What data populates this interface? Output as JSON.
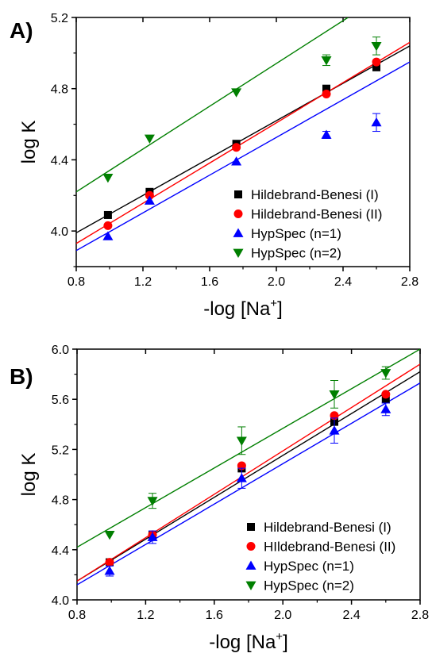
{
  "chart_data": [
    {
      "type": "scatter",
      "panel_label": "A)",
      "xlabel_prefix": "-log [Na",
      "xlabel_sup": "+",
      "xlabel_suffix": "]",
      "ylabel": "log K",
      "xlim": [
        0.8,
        2.8
      ],
      "ylim": [
        3.8,
        5.2
      ],
      "x_ticks": [
        0.8,
        1.2,
        1.6,
        2.0,
        2.4,
        2.8
      ],
      "x_tick_labels": [
        "0.8",
        "1.2",
        "1.6",
        "2.0",
        "2.4",
        "2.8"
      ],
      "y_ticks": [
        4.0,
        4.4,
        4.8,
        5.2
      ],
      "y_tick_labels": [
        "4.0",
        "4.4",
        "4.8",
        "5.2"
      ],
      "legend_position": "bottom-right",
      "series": [
        {
          "name": "Hildebrand-Benesi (I)",
          "color": "#000000",
          "marker": "square",
          "x": [
            0.99,
            1.24,
            1.76,
            2.3,
            2.6
          ],
          "y": [
            4.09,
            4.22,
            4.49,
            4.8,
            4.92
          ],
          "err": [
            0.0,
            0.0,
            0.0,
            0.0,
            0.01
          ],
          "fit": {
            "x": [
              0.8,
              2.8
            ],
            "y": [
              3.99,
              5.04
            ]
          }
        },
        {
          "name": "Hildebrand-Benesi (II)",
          "color": "#ff0000",
          "marker": "circle",
          "x": [
            0.99,
            1.24,
            1.76,
            2.3,
            2.6
          ],
          "y": [
            4.03,
            4.2,
            4.47,
            4.77,
            4.95
          ],
          "err": [
            0.0,
            0.0,
            0.0,
            0.0,
            0.0
          ],
          "fit": {
            "x": [
              0.8,
              2.8
            ],
            "y": [
              3.93,
              5.06
            ]
          }
        },
        {
          "name": "HypSpec (n=1)",
          "color": "#0000ff",
          "marker": "triangle-up",
          "x": [
            0.99,
            1.24,
            1.76,
            2.3,
            2.6
          ],
          "y": [
            3.97,
            4.17,
            4.39,
            4.54,
            4.61
          ],
          "err": [
            0.0,
            0.0,
            0.0,
            0.02,
            0.05
          ],
          "fit": {
            "x": [
              0.8,
              2.8
            ],
            "y": [
              3.89,
              4.95
            ]
          }
        },
        {
          "name": "HypSpec (n=2)",
          "color": "#007f00",
          "marker": "triangle-down",
          "x": [
            0.99,
            1.24,
            1.76,
            2.3,
            2.6
          ],
          "y": [
            4.3,
            4.52,
            4.78,
            4.96,
            5.04
          ],
          "err": [
            0.0,
            0.0,
            0.0,
            0.03,
            0.05
          ],
          "fit": {
            "x": [
              0.8,
              2.43
            ],
            "y": [
              4.22,
              5.2
            ]
          }
        }
      ]
    },
    {
      "type": "scatter",
      "panel_label": "B)",
      "xlabel_prefix": "-log [Na",
      "xlabel_sup": "+",
      "xlabel_suffix": "]",
      "ylabel": "log K",
      "xlim": [
        0.8,
        2.8
      ],
      "ylim": [
        4.0,
        6.0
      ],
      "x_ticks": [
        0.8,
        1.2,
        1.6,
        2.0,
        2.4,
        2.8
      ],
      "x_tick_labels": [
        "0.8",
        "1.2",
        "1.6",
        "2.0",
        "2.4",
        "2.8"
      ],
      "y_ticks": [
        4.0,
        4.4,
        4.8,
        5.2,
        5.6,
        6.0
      ],
      "y_tick_labels": [
        "4.0",
        "4.4",
        "4.8",
        "5.2",
        "5.6",
        "6.0"
      ],
      "legend_position": "bottom-right",
      "series": [
        {
          "name": "Hildebrand-Benesi (I)",
          "color": "#000000",
          "marker": "square",
          "x": [
            0.99,
            1.24,
            1.76,
            2.3,
            2.6
          ],
          "y": [
            4.3,
            4.52,
            5.05,
            5.42,
            5.6
          ],
          "err": [
            0.0,
            0.0,
            0.03,
            0.02,
            0.03
          ],
          "fit": {
            "x": [
              0.8,
              2.8
            ],
            "y": [
              4.15,
              5.82
            ]
          }
        },
        {
          "name": "HIldebrand-Benesi (II)",
          "color": "#ff0000",
          "marker": "circle",
          "x": [
            0.99,
            1.24,
            1.76,
            2.3,
            2.6
          ],
          "y": [
            4.3,
            4.52,
            5.07,
            5.47,
            5.64
          ],
          "err": [
            0.0,
            0.0,
            0.0,
            0.0,
            0.0
          ],
          "fit": {
            "x": [
              0.8,
              2.8
            ],
            "y": [
              4.15,
              5.88
            ]
          }
        },
        {
          "name": "HypSpec (n=1)",
          "color": "#0000ff",
          "marker": "triangle-up",
          "x": [
            0.99,
            1.24,
            1.76,
            2.3,
            2.6
          ],
          "y": [
            4.23,
            4.5,
            4.97,
            5.35,
            5.52
          ],
          "err": [
            0.04,
            0.05,
            0.08,
            0.1,
            0.05
          ],
          "fit": {
            "x": [
              0.8,
              2.8
            ],
            "y": [
              4.12,
              5.73
            ]
          }
        },
        {
          "name": "HypSpec (n=2)",
          "color": "#007f00",
          "marker": "triangle-down",
          "x": [
            0.99,
            1.24,
            1.76,
            2.3,
            2.6
          ],
          "y": [
            4.52,
            4.79,
            5.27,
            5.64,
            5.81
          ],
          "err": [
            0.0,
            0.06,
            0.11,
            0.11,
            0.05
          ],
          "fit": {
            "x": [
              0.8,
              2.8
            ],
            "y": [
              4.42,
              6.0
            ]
          }
        }
      ]
    }
  ]
}
